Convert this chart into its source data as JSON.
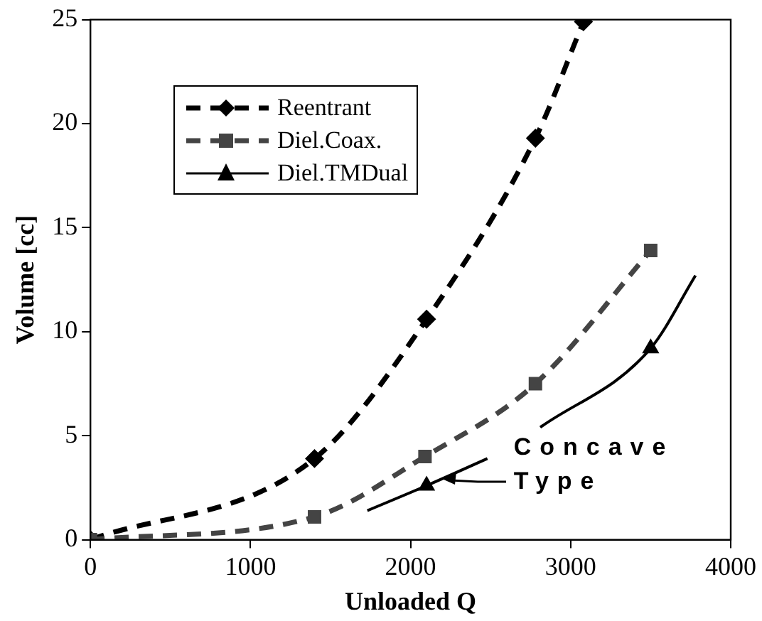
{
  "chart_data": {
    "type": "line",
    "xlabel": "Unloaded Q",
    "ylabel": "Volume [cc]",
    "xlim": [
      0,
      4000
    ],
    "xticks": [
      0,
      1000,
      2000,
      3000,
      4000
    ],
    "ylim": [
      0,
      25
    ],
    "yticks": [
      0,
      5,
      10,
      15,
      20,
      25
    ],
    "grid": false,
    "legend": "top left",
    "series": [
      {
        "name": "Reentrant",
        "color": "#000000",
        "marker": "diamond",
        "line_style": "dashed",
        "x": [
          0,
          1400,
          2100,
          2780,
          3080
        ],
        "values": [
          0,
          3.9,
          10.6,
          19.3,
          24.9
        ]
      },
      {
        "name": "Diel.Coax.",
        "color": "#444444",
        "marker": "square",
        "line_style": "dashed",
        "x": [
          0,
          1400,
          2090,
          2780,
          3500
        ],
        "values": [
          0,
          1.1,
          4.0,
          7.5,
          13.9
        ]
      },
      {
        "name": "Diel.TMDual",
        "type": "scatter",
        "color": "#000000",
        "marker": "triangle",
        "line_style": "solid",
        "x": [
          2100,
          3500
        ],
        "values": [
          2.6,
          9.2
        ]
      },
      {
        "color": "#000000",
        "marker": "none",
        "line_style": "solid",
        "x": [
          1730,
          2100,
          2480,
          2650,
          2810,
          3500,
          3780
        ],
        "values": [
          1.4,
          2.6,
          3.9,
          null,
          5.4,
          9.2,
          12.7
        ]
      }
    ],
    "annotations": [
      {
        "text": "Concave Type",
        "x": 2200,
        "y": 2.9
      }
    ]
  }
}
